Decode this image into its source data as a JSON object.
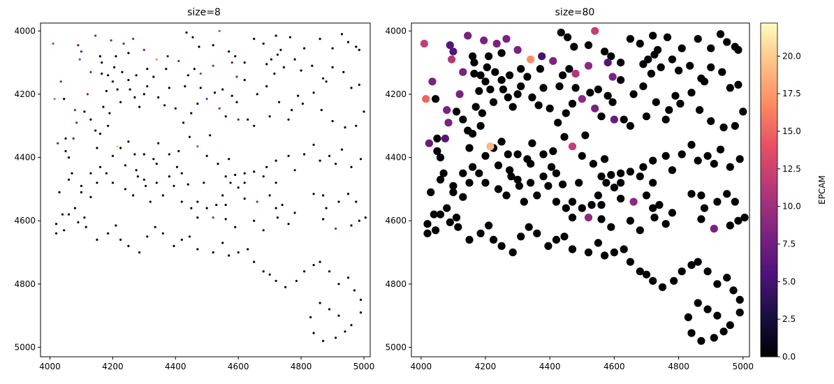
{
  "chart_data": [
    {
      "type": "scatter",
      "title": "size=8",
      "xlabel": "",
      "ylabel": "",
      "xlim": [
        3970,
        5020
      ],
      "ylim": [
        5030,
        3975
      ],
      "y_inverted": true,
      "xticks": [
        4000,
        4200,
        4400,
        4600,
        4800,
        5000
      ],
      "yticks": [
        4000,
        4200,
        4400,
        4600,
        4800,
        5000
      ],
      "grid": false,
      "marker_size": 8,
      "colormap": "magma",
      "color_variable": "EPCAM",
      "points_ref": "shared_points"
    },
    {
      "type": "scatter",
      "title": "size=80",
      "xlabel": "",
      "ylabel": "",
      "xlim": [
        3970,
        5020
      ],
      "ylim": [
        5030,
        3975
      ],
      "y_inverted": true,
      "xticks": [
        4000,
        4200,
        4400,
        4600,
        4800,
        5000
      ],
      "yticks": [
        4000,
        4200,
        4400,
        4600,
        4800,
        5000
      ],
      "grid": false,
      "marker_size": 80,
      "colormap": "magma",
      "color_variable": "EPCAM",
      "points_ref": "shared_points",
      "colorbar": {
        "label": "EPCAM",
        "range": [
          0,
          22.2
        ],
        "ticks": [
          0.0,
          2.5,
          5.0,
          7.5,
          10.0,
          12.5,
          15.0,
          17.5,
          20.0
        ],
        "tick_labels": [
          "0.0",
          "2.5",
          "5.0",
          "7.5",
          "10.0",
          "12.5",
          "15.0",
          "17.5",
          "20.0"
        ]
      }
    }
  ],
  "shared_points": [
    [
      4010,
      4040,
      12
    ],
    [
      4035,
      4160,
      8
    ],
    [
      4045,
      4215,
      0
    ],
    [
      4050,
      4340,
      0
    ],
    [
      4025,
      4355,
      7
    ],
    [
      4060,
      4400,
      0
    ],
    [
      4050,
      4380,
      0
    ],
    [
      4090,
      4045,
      6
    ],
    [
      4100,
      4065,
      6
    ],
    [
      4145,
      4015,
      8
    ],
    [
      4195,
      4030,
      8
    ],
    [
      4235,
      4040,
      8
    ],
    [
      4265,
      4025,
      8
    ],
    [
      4300,
      4060,
      8
    ],
    [
      4095,
      4090,
      11
    ],
    [
      4160,
      4080,
      0
    ],
    [
      4165,
      4100,
      0
    ],
    [
      4210,
      4080,
      0
    ],
    [
      4250,
      4070,
      0
    ],
    [
      4205,
      4115,
      0
    ],
    [
      4185,
      4140,
      0
    ],
    [
      4130,
      4130,
      8
    ],
    [
      4120,
      4200,
      8
    ],
    [
      4015,
      4215,
      15
    ],
    [
      4165,
      4135,
      0
    ],
    [
      4200,
      4160,
      0
    ],
    [
      4230,
      4130,
      0
    ],
    [
      4250,
      4155,
      0
    ],
    [
      4275,
      4140,
      0
    ],
    [
      4255,
      4185,
      0
    ],
    [
      4215,
      4185,
      0
    ],
    [
      4180,
      4190,
      0
    ],
    [
      4170,
      4240,
      0
    ],
    [
      4190,
      4260,
      0
    ],
    [
      4225,
      4225,
      0
    ],
    [
      4270,
      4210,
      0
    ],
    [
      4285,
      4240,
      0
    ],
    [
      4300,
      4200,
      0
    ],
    [
      4310,
      4175,
      0
    ],
    [
      4330,
      4145,
      0
    ],
    [
      4310,
      4120,
      0
    ],
    [
      4340,
      4090,
      17
    ],
    [
      4375,
      4080,
      5
    ],
    [
      4410,
      4095,
      8
    ],
    [
      4435,
      4005,
      0
    ],
    [
      4455,
      4020,
      0
    ],
    [
      4475,
      4050,
      0
    ],
    [
      4520,
      4045,
      0
    ],
    [
      4540,
      4000,
      12
    ],
    [
      4570,
      4065,
      0
    ],
    [
      4590,
      4080,
      0
    ],
    [
      4580,
      4100,
      6
    ],
    [
      4595,
      4145,
      8
    ],
    [
      4620,
      4100,
      0
    ],
    [
      4650,
      4025,
      0
    ],
    [
      4680,
      4040,
      0
    ],
    [
      4720,
      4015,
      0
    ],
    [
      4735,
      4060,
      0
    ],
    [
      4765,
      4020,
      0
    ],
    [
      4810,
      4055,
      0
    ],
    [
      4860,
      4025,
      0
    ],
    [
      4900,
      4055,
      0
    ],
    [
      4930,
      4010,
      0
    ],
    [
      4950,
      4035,
      0
    ],
    [
      4975,
      4050,
      0
    ],
    [
      4985,
      4060,
      0
    ],
    [
      4690,
      4105,
      0
    ],
    [
      4705,
      4090,
      0
    ],
    [
      4725,
      4075,
      0
    ],
    [
      4745,
      4115,
      0
    ],
    [
      4715,
      4135,
      0
    ],
    [
      4690,
      4175,
      0
    ],
    [
      4660,
      4200,
      0
    ],
    [
      4620,
      4155,
      0
    ],
    [
      4580,
      4205,
      0
    ],
    [
      4595,
      4225,
      0
    ],
    [
      4550,
      4185,
      0
    ],
    [
      4525,
      4195,
      0
    ],
    [
      4480,
      4180,
      0
    ],
    [
      4460,
      4120,
      0
    ],
    [
      4440,
      4140,
      0
    ],
    [
      4430,
      4175,
      0
    ],
    [
      4480,
      4135,
      11
    ],
    [
      4520,
      4110,
      9
    ],
    [
      4370,
      4120,
      0
    ],
    [
      4380,
      4180,
      0
    ],
    [
      4345,
      4210,
      0
    ],
    [
      4365,
      4235,
      0
    ],
    [
      4400,
      4245,
      0
    ],
    [
      4425,
      4290,
      0
    ],
    [
      4450,
      4260,
      0
    ],
    [
      4470,
      4230,
      0
    ],
    [
      4500,
      4215,
      9
    ],
    [
      4540,
      4245,
      8
    ],
    [
      4560,
      4270,
      0
    ],
    [
      4600,
      4280,
      7
    ],
    [
      4630,
      4280,
      0
    ],
    [
      4650,
      4300,
      0
    ],
    [
      4700,
      4270,
      0
    ],
    [
      4730,
      4225,
      0
    ],
    [
      4760,
      4280,
      0
    ],
    [
      4770,
      4250,
      0
    ],
    [
      4790,
      4205,
      0
    ],
    [
      4805,
      4230,
      0
    ],
    [
      4840,
      4195,
      0
    ],
    [
      4880,
      4160,
      0
    ],
    [
      4900,
      4115,
      0
    ],
    [
      4935,
      4130,
      0
    ],
    [
      4960,
      4180,
      0
    ],
    [
      4985,
      4170,
      0
    ],
    [
      4865,
      4250,
      0
    ],
    [
      4900,
      4285,
      0
    ],
    [
      4940,
      4305,
      0
    ],
    [
      4975,
      4300,
      0
    ],
    [
      5000,
      4255,
      0
    ],
    [
      4870,
      4150,
      0
    ],
    [
      4835,
      4110,
      0
    ],
    [
      4800,
      4125,
      0
    ],
    [
      4780,
      4090,
      0
    ],
    [
      4080,
      4250,
      8
    ],
    [
      4085,
      4290,
      8
    ],
    [
      4075,
      4340,
      6
    ],
    [
      4110,
      4255,
      0
    ],
    [
      4130,
      4280,
      0
    ],
    [
      4145,
      4315,
      0
    ],
    [
      4160,
      4325,
      0
    ],
    [
      4185,
      4300,
      0
    ],
    [
      4150,
      4370,
      0
    ],
    [
      4200,
      4395,
      0
    ],
    [
      4225,
      4370,
      0
    ],
    [
      4250,
      4350,
      0
    ],
    [
      4270,
      4390,
      0
    ],
    [
      4300,
      4390,
      0
    ],
    [
      4330,
      4405,
      0
    ],
    [
      4345,
      4355,
      0
    ],
    [
      4380,
      4390,
      0
    ],
    [
      4410,
      4380,
      0
    ],
    [
      4445,
      4335,
      0
    ],
    [
      4470,
      4365,
      12
    ],
    [
      4510,
      4330,
      0
    ],
    [
      4500,
      4395,
      0
    ],
    [
      4535,
      4420,
      0
    ],
    [
      4570,
      4405,
      0
    ],
    [
      4560,
      4460,
      0
    ],
    [
      4590,
      4455,
      0
    ],
    [
      4620,
      4450,
      0
    ],
    [
      4650,
      4445,
      0
    ],
    [
      4690,
      4430,
      0
    ],
    [
      4720,
      4410,
      0
    ],
    [
      4760,
      4395,
      0
    ],
    [
      4780,
      4440,
      0
    ],
    [
      4810,
      4390,
      0
    ],
    [
      4840,
      4360,
      0
    ],
    [
      4860,
      4410,
      0
    ],
    [
      4890,
      4395,
      0
    ],
    [
      4910,
      4420,
      0
    ],
    [
      4930,
      4375,
      0
    ],
    [
      4960,
      4430,
      0
    ],
    [
      4990,
      4405,
      0
    ],
    [
      4720,
      4480,
      0
    ],
    [
      4680,
      4460,
      0
    ],
    [
      4620,
      4480,
      0
    ],
    [
      4575,
      4480,
      0
    ],
    [
      4550,
      4520,
      0
    ],
    [
      4600,
      4495,
      0
    ],
    [
      4620,
      4530,
      0
    ],
    [
      4660,
      4540,
      9
    ],
    [
      4700,
      4520,
      0
    ],
    [
      4720,
      4560,
      0
    ],
    [
      4740,
      4550,
      0
    ],
    [
      4780,
      4575,
      0
    ],
    [
      4840,
      4515,
      0
    ],
    [
      4870,
      4520,
      0
    ],
    [
      4880,
      4560,
      0
    ],
    [
      4920,
      4540,
      0
    ],
    [
      4950,
      4515,
      0
    ],
    [
      4975,
      4540,
      0
    ],
    [
      4985,
      4600,
      0
    ],
    [
      5005,
      4590,
      0
    ],
    [
      4960,
      4615,
      0
    ],
    [
      4910,
      4625,
      8
    ],
    [
      4870,
      4595,
      0
    ],
    [
      4760,
      4610,
      0
    ],
    [
      4725,
      4590,
      0
    ],
    [
      4680,
      4630,
      0
    ],
    [
      4650,
      4600,
      0
    ],
    [
      4590,
      4620,
      0
    ],
    [
      4560,
      4595,
      0
    ],
    [
      4520,
      4590,
      9
    ],
    [
      4470,
      4540,
      0
    ],
    [
      4490,
      4480,
      0
    ],
    [
      4440,
      4485,
      0
    ],
    [
      4420,
      4450,
      0
    ],
    [
      4405,
      4430,
      0
    ],
    [
      4380,
      4460,
      0
    ],
    [
      4340,
      4420,
      0
    ],
    [
      4300,
      4470,
      0
    ],
    [
      4275,
      4440,
      0
    ],
    [
      4240,
      4425,
      0
    ],
    [
      4215,
      4365,
      19
    ],
    [
      4160,
      4430,
      0
    ],
    [
      4130,
      4450,
      0
    ],
    [
      4100,
      4490,
      0
    ],
    [
      4070,
      4450,
      0
    ],
    [
      4060,
      4470,
      0
    ],
    [
      4030,
      4510,
      0
    ],
    [
      4040,
      4580,
      0
    ],
    [
      4060,
      4580,
      0
    ],
    [
      4080,
      4560,
      0
    ],
    [
      4110,
      4590,
      0
    ],
    [
      4130,
      4525,
      0
    ],
    [
      4150,
      4480,
      0
    ],
    [
      4180,
      4450,
      0
    ],
    [
      4200,
      4480,
      0
    ],
    [
      4240,
      4500,
      0
    ],
    [
      4265,
      4520,
      0
    ],
    [
      4280,
      4460,
      0
    ],
    [
      4305,
      4490,
      0
    ],
    [
      4320,
      4540,
      0
    ],
    [
      4340,
      4480,
      0
    ],
    [
      4360,
      4520,
      0
    ],
    [
      4395,
      4490,
      0
    ],
    [
      4420,
      4540,
      0
    ],
    [
      4450,
      4560,
      0
    ],
    [
      4470,
      4590,
      0
    ],
    [
      4500,
      4560,
      0
    ],
    [
      4530,
      4550,
      0
    ],
    [
      4560,
      4550,
      0
    ],
    [
      4100,
      4510,
      0
    ],
    [
      4020,
      4610,
      0
    ],
    [
      4045,
      4630,
      0
    ],
    [
      4020,
      4640,
      0
    ],
    [
      4090,
      4605,
      0
    ],
    [
      4115,
      4620,
      0
    ],
    [
      4150,
      4660,
      0
    ],
    [
      4185,
      4640,
      0
    ],
    [
      4210,
      4615,
      0
    ],
    [
      4225,
      4660,
      0
    ],
    [
      4250,
      4680,
      0
    ],
    [
      4285,
      4700,
      0
    ],
    [
      4310,
      4650,
      0
    ],
    [
      4335,
      4620,
      0
    ],
    [
      4360,
      4640,
      0
    ],
    [
      4395,
      4680,
      0
    ],
    [
      4420,
      4660,
      0
    ],
    [
      4445,
      4650,
      0
    ],
    [
      4470,
      4690,
      0
    ],
    [
      4520,
      4700,
      0
    ],
    [
      4550,
      4670,
      0
    ],
    [
      4570,
      4710,
      0
    ],
    [
      4600,
      4700,
      0
    ],
    [
      4630,
      4690,
      0
    ],
    [
      4650,
      4730,
      0
    ],
    [
      4680,
      4760,
      0
    ],
    [
      4700,
      4770,
      0
    ],
    [
      4720,
      4790,
      0
    ],
    [
      4750,
      4810,
      0
    ],
    [
      4785,
      4790,
      0
    ],
    [
      4810,
      4760,
      0
    ],
    [
      4840,
      4740,
      0
    ],
    [
      4860,
      4730,
      0
    ],
    [
      4890,
      4760,
      0
    ],
    [
      4920,
      4800,
      0
    ],
    [
      4950,
      4780,
      0
    ],
    [
      4970,
      4820,
      0
    ],
    [
      4990,
      4850,
      0
    ],
    [
      4990,
      4890,
      0
    ],
    [
      4960,
      4930,
      0
    ],
    [
      4940,
      4950,
      0
    ],
    [
      4910,
      4970,
      0
    ],
    [
      4870,
      4980,
      0
    ],
    [
      4840,
      4955,
      0
    ],
    [
      4830,
      4905,
      0
    ],
    [
      4860,
      4860,
      0
    ],
    [
      4890,
      4880,
      0
    ],
    [
      4920,
      4900,
      0
    ]
  ],
  "points_note": ""
}
